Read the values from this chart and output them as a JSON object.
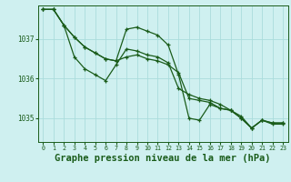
{
  "background_color": "#cff0f0",
  "grid_color": "#aadcdc",
  "line_color": "#1a5c1a",
  "title": "Graphe pression niveau de la mer (hPa)",
  "title_fontsize": 7.5,
  "xlim": [
    -0.5,
    23.5
  ],
  "ylim": [
    1034.4,
    1037.85
  ],
  "yticks": [
    1035,
    1036,
    1037
  ],
  "xticks": [
    0,
    1,
    2,
    3,
    4,
    5,
    6,
    7,
    8,
    9,
    10,
    11,
    12,
    13,
    14,
    15,
    16,
    17,
    18,
    19,
    20,
    21,
    22,
    23
  ],
  "series1": [
    1037.75,
    1037.75,
    1037.35,
    1036.55,
    1036.25,
    1036.1,
    1035.95,
    1036.35,
    1036.75,
    1036.7,
    1036.6,
    1036.55,
    1036.4,
    1035.75,
    1035.6,
    1035.5,
    1035.45,
    1035.35,
    1035.2,
    1035.0,
    1034.75,
    1034.95,
    1034.85,
    1034.85
  ],
  "series2": [
    1037.75,
    1037.75,
    1037.35,
    1037.05,
    1036.8,
    1036.65,
    1036.5,
    1036.45,
    1036.55,
    1036.6,
    1036.5,
    1036.45,
    1036.35,
    1036.15,
    1035.5,
    1035.45,
    1035.4,
    1035.25,
    1035.2,
    1035.05,
    1034.75,
    1034.95,
    1034.88,
    1034.88
  ],
  "series3": [
    1037.75,
    1037.75,
    1037.35,
    1037.05,
    1036.8,
    1036.65,
    1036.5,
    1036.45,
    1037.25,
    1037.3,
    1037.2,
    1037.1,
    1036.85,
    1036.1,
    1035.0,
    1034.95,
    1035.35,
    1035.25,
    1035.2,
    1035.0,
    1034.75,
    1034.95,
    1034.88,
    1034.88
  ]
}
